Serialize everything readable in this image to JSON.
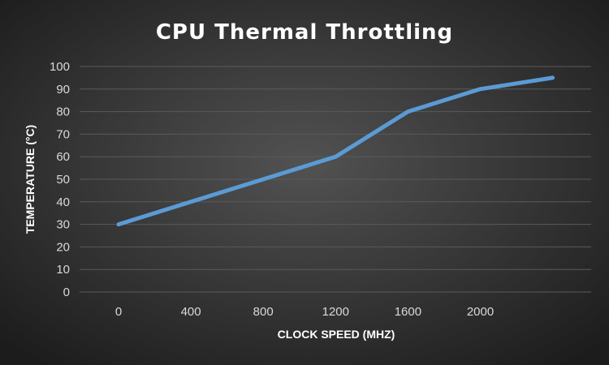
{
  "chart_data": {
    "type": "line",
    "title": "CPU Thermal Throttling",
    "xlabel": "CLOCK SPEED (MHZ)",
    "ylabel": "TEMPERATURE (°C)",
    "x_tick_labels": [
      "0",
      "400",
      "800",
      "1200",
      "1600",
      "2000"
    ],
    "y_tick_labels": [
      "0",
      "10",
      "20",
      "30",
      "40",
      "50",
      "60",
      "70",
      "80",
      "90",
      "100"
    ],
    "ylim": [
      0,
      100
    ],
    "grid": true,
    "legend": "none",
    "x": [
      0,
      400,
      800,
      1200,
      1600,
      2000,
      2400
    ],
    "series": [
      {
        "values": [
          30,
          40,
          50,
          60,
          80,
          90,
          95
        ],
        "color": "#5b9bd5"
      }
    ]
  },
  "colors": {
    "background_center": "#525252",
    "background_edge": "#1c1c1c",
    "gridline": "#5a5a5a",
    "text": "#ffffff",
    "tick_text": "#d9d9d9"
  }
}
